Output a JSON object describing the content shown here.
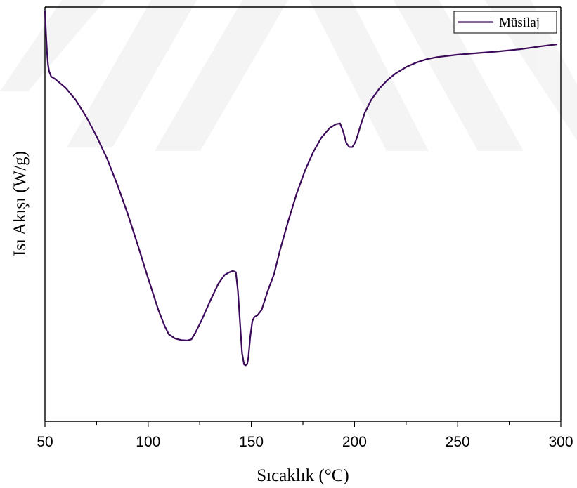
{
  "chart_data": {
    "type": "line",
    "title": "",
    "xlabel": "Sıcaklık (°C)",
    "ylabel": "Isı Akışı (W/g)",
    "xlim": [
      50,
      300
    ],
    "x_ticks": [
      "50",
      "100",
      "150",
      "200",
      "250",
      "300"
    ],
    "x_tick_values": [
      50,
      100,
      150,
      200,
      250,
      300
    ],
    "y_ticks_visible": false,
    "ylim": [
      0,
      100
    ],
    "grid": false,
    "legend_position": "top-right",
    "colors": {
      "series": "#3c0a5a",
      "axes": "#000000",
      "background": "#ffffff"
    },
    "series": [
      {
        "name": "Müsilaj",
        "x": [
          50.0,
          50.5,
          51.0,
          51.5,
          52.0,
          53.0,
          55.0,
          60.0,
          65.0,
          70.0,
          75.0,
          80.0,
          85.0,
          90.0,
          95.0,
          100.0,
          105.0,
          108.0,
          110.0,
          113.0,
          116.0,
          119.0,
          121.0,
          123.0,
          126.0,
          130.0,
          134.0,
          137.0,
          139.0,
          141.0,
          142.5,
          143.5,
          144.5,
          145.5,
          146.5,
          147.3,
          148.0,
          148.6,
          149.5,
          150.5,
          151.5,
          153.0,
          155.0,
          158.0,
          161.0,
          164.0,
          168.0,
          172.0,
          176.0,
          180.0,
          184.0,
          188.0,
          191.0,
          193.0,
          194.5,
          196.0,
          197.5,
          199.0,
          200.5,
          201.5,
          203.0,
          205.0,
          208.0,
          212.0,
          216.0,
          220.0,
          225.0,
          230.0,
          235.0,
          240.0,
          245.0,
          250.0,
          260.0,
          270.0,
          280.0,
          290.0,
          298.0
        ],
        "y": [
          99.0,
          93.5,
          89.0,
          86.0,
          84.5,
          83.2,
          82.6,
          80.5,
          77.5,
          73.5,
          68.8,
          63.5,
          57.2,
          50.2,
          42.5,
          34.5,
          26.8,
          23.0,
          21.0,
          20.0,
          19.6,
          19.5,
          19.8,
          21.5,
          24.5,
          29.0,
          33.2,
          35.3,
          35.9,
          36.3,
          36.0,
          31.5,
          24.0,
          16.5,
          13.7,
          13.5,
          13.8,
          15.5,
          20.5,
          24.2,
          25.2,
          25.6,
          26.9,
          31.5,
          35.5,
          41.5,
          48.5,
          55.0,
          60.5,
          65.0,
          68.5,
          70.8,
          71.7,
          71.9,
          70.0,
          67.2,
          66.2,
          66.2,
          67.5,
          69.0,
          71.5,
          74.5,
          77.5,
          80.3,
          82.4,
          84.0,
          85.5,
          86.6,
          87.4,
          87.9,
          88.2,
          88.5,
          88.9,
          89.3,
          89.8,
          90.5,
          91.0
        ]
      }
    ]
  }
}
